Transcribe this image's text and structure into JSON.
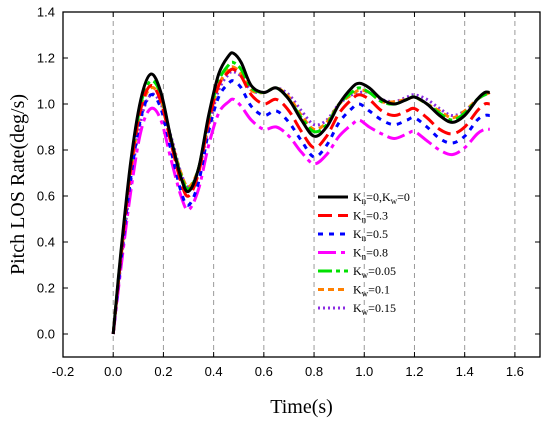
{
  "chart_data": {
    "type": "line",
    "title": "",
    "xlabel": "Time(s)",
    "ylabel": "Pitch LOS Rate(deg/s)",
    "xlim": [
      -0.2,
      1.7
    ],
    "ylim": [
      -0.1,
      1.4
    ],
    "x_ticks": [
      "-0.2",
      "0.0",
      "0.2",
      "0.4",
      "0.6",
      "0.8",
      "1.0",
      "1.2",
      "1.4",
      "1.6"
    ],
    "y_ticks": [
      "0.0",
      "0.2",
      "0.4",
      "0.6",
      "0.8",
      "1.0",
      "1.2",
      "1.4"
    ],
    "grid": "vertical-dashed",
    "legend_position": "center-right",
    "series": [
      {
        "name": "K_n=0,K_w=0",
        "legend_main": "K",
        "legend_sub": "n",
        "legend_tail": "=0,K",
        "legend_sub2": "w",
        "legend_tail2": "=0",
        "color": "#000000",
        "dash": "solid",
        "width": 3,
        "points": [
          [
            0,
            0
          ],
          [
            0.03,
            0.35
          ],
          [
            0.07,
            0.75
          ],
          [
            0.11,
            1.02
          ],
          [
            0.15,
            1.13
          ],
          [
            0.19,
            1.05
          ],
          [
            0.23,
            0.85
          ],
          [
            0.27,
            0.68
          ],
          [
            0.3,
            0.62
          ],
          [
            0.34,
            0.72
          ],
          [
            0.38,
            0.95
          ],
          [
            0.42,
            1.13
          ],
          [
            0.46,
            1.21
          ],
          [
            0.48,
            1.22
          ],
          [
            0.51,
            1.18
          ],
          [
            0.55,
            1.08
          ],
          [
            0.6,
            1.05
          ],
          [
            0.65,
            1.07
          ],
          [
            0.7,
            1.02
          ],
          [
            0.75,
            0.93
          ],
          [
            0.8,
            0.86
          ],
          [
            0.85,
            0.9
          ],
          [
            0.9,
            1.0
          ],
          [
            0.95,
            1.07
          ],
          [
            0.98,
            1.09
          ],
          [
            1.02,
            1.07
          ],
          [
            1.07,
            1.02
          ],
          [
            1.12,
            1.0
          ],
          [
            1.17,
            1.02
          ],
          [
            1.2,
            1.03
          ],
          [
            1.25,
            1.0
          ],
          [
            1.3,
            0.95
          ],
          [
            1.35,
            0.92
          ],
          [
            1.4,
            0.95
          ],
          [
            1.45,
            1.02
          ],
          [
            1.48,
            1.05
          ],
          [
            1.5,
            1.05
          ]
        ]
      },
      {
        "name": "K_n=0.3",
        "legend_main": "K",
        "legend_sub": "n",
        "legend_tail": "=0.3",
        "color": "#ff0000",
        "dash": "14,6",
        "width": 3,
        "points": [
          [
            0,
            0
          ],
          [
            0.03,
            0.33
          ],
          [
            0.07,
            0.72
          ],
          [
            0.11,
            0.98
          ],
          [
            0.15,
            1.08
          ],
          [
            0.19,
            1.01
          ],
          [
            0.23,
            0.83
          ],
          [
            0.27,
            0.66
          ],
          [
            0.3,
            0.6
          ],
          [
            0.34,
            0.7
          ],
          [
            0.38,
            0.92
          ],
          [
            0.42,
            1.08
          ],
          [
            0.46,
            1.14
          ],
          [
            0.48,
            1.15
          ],
          [
            0.51,
            1.12
          ],
          [
            0.55,
            1.04
          ],
          [
            0.6,
            1.0
          ],
          [
            0.65,
            1.02
          ],
          [
            0.7,
            0.97
          ],
          [
            0.75,
            0.88
          ],
          [
            0.8,
            0.81
          ],
          [
            0.85,
            0.86
          ],
          [
            0.9,
            0.96
          ],
          [
            0.95,
            1.02
          ],
          [
            0.98,
            1.04
          ],
          [
            1.02,
            1.02
          ],
          [
            1.07,
            0.97
          ],
          [
            1.12,
            0.95
          ],
          [
            1.17,
            0.97
          ],
          [
            1.2,
            0.98
          ],
          [
            1.25,
            0.94
          ],
          [
            1.3,
            0.89
          ],
          [
            1.35,
            0.87
          ],
          [
            1.4,
            0.9
          ],
          [
            1.45,
            0.97
          ],
          [
            1.48,
            1.0
          ],
          [
            1.5,
            1.0
          ]
        ]
      },
      {
        "name": "K_n=0.5",
        "legend_main": "K",
        "legend_sub": "n",
        "legend_tail": "=0.5",
        "color": "#0000ff",
        "dash": "5,6",
        "width": 3,
        "points": [
          [
            0,
            0
          ],
          [
            0.03,
            0.31
          ],
          [
            0.07,
            0.68
          ],
          [
            0.11,
            0.94
          ],
          [
            0.15,
            1.04
          ],
          [
            0.19,
            0.98
          ],
          [
            0.23,
            0.8
          ],
          [
            0.27,
            0.62
          ],
          [
            0.3,
            0.56
          ],
          [
            0.34,
            0.66
          ],
          [
            0.38,
            0.88
          ],
          [
            0.42,
            1.03
          ],
          [
            0.46,
            1.09
          ],
          [
            0.48,
            1.1
          ],
          [
            0.51,
            1.07
          ],
          [
            0.55,
            0.99
          ],
          [
            0.6,
            0.95
          ],
          [
            0.65,
            0.97
          ],
          [
            0.7,
            0.92
          ],
          [
            0.75,
            0.84
          ],
          [
            0.8,
            0.77
          ],
          [
            0.85,
            0.82
          ],
          [
            0.9,
            0.92
          ],
          [
            0.95,
            0.98
          ],
          [
            0.98,
            1.0
          ],
          [
            1.02,
            0.97
          ],
          [
            1.07,
            0.93
          ],
          [
            1.12,
            0.91
          ],
          [
            1.17,
            0.93
          ],
          [
            1.2,
            0.94
          ],
          [
            1.25,
            0.9
          ],
          [
            1.3,
            0.85
          ],
          [
            1.35,
            0.83
          ],
          [
            1.4,
            0.86
          ],
          [
            1.45,
            0.93
          ],
          [
            1.48,
            0.95
          ],
          [
            1.5,
            0.95
          ]
        ]
      },
      {
        "name": "K_n=0.8",
        "legend_main": "K",
        "legend_sub": "n",
        "legend_tail": "=0.8",
        "color": "#ff00ff",
        "dash": "18,5,4,5",
        "width": 3,
        "points": [
          [
            0,
            0
          ],
          [
            0.03,
            0.28
          ],
          [
            0.07,
            0.62
          ],
          [
            0.11,
            0.88
          ],
          [
            0.15,
            0.98
          ],
          [
            0.19,
            0.93
          ],
          [
            0.23,
            0.76
          ],
          [
            0.27,
            0.6
          ],
          [
            0.3,
            0.54
          ],
          [
            0.34,
            0.63
          ],
          [
            0.38,
            0.82
          ],
          [
            0.42,
            0.96
          ],
          [
            0.46,
            1.01
          ],
          [
            0.48,
            1.02
          ],
          [
            0.51,
            0.99
          ],
          [
            0.55,
            0.93
          ],
          [
            0.6,
            0.89
          ],
          [
            0.65,
            0.9
          ],
          [
            0.7,
            0.86
          ],
          [
            0.75,
            0.79
          ],
          [
            0.8,
            0.74
          ],
          [
            0.85,
            0.78
          ],
          [
            0.9,
            0.86
          ],
          [
            0.95,
            0.91
          ],
          [
            0.98,
            0.93
          ],
          [
            1.02,
            0.9
          ],
          [
            1.07,
            0.87
          ],
          [
            1.12,
            0.85
          ],
          [
            1.17,
            0.87
          ],
          [
            1.2,
            0.88
          ],
          [
            1.25,
            0.84
          ],
          [
            1.3,
            0.8
          ],
          [
            1.35,
            0.78
          ],
          [
            1.4,
            0.81
          ],
          [
            1.45,
            0.87
          ],
          [
            1.48,
            0.89
          ],
          [
            1.5,
            0.89
          ]
        ]
      },
      {
        "name": "K_w=0.05",
        "legend_main": "K",
        "legend_sub": "w",
        "legend_tail": "=0.05",
        "color": "#00e000",
        "dash": "14,4,4,4",
        "width": 3,
        "points": [
          [
            0,
            0
          ],
          [
            0.03,
            0.34
          ],
          [
            0.07,
            0.73
          ],
          [
            0.11,
            1.0
          ],
          [
            0.15,
            1.1
          ],
          [
            0.19,
            1.04
          ],
          [
            0.23,
            0.85
          ],
          [
            0.27,
            0.69
          ],
          [
            0.3,
            0.63
          ],
          [
            0.34,
            0.72
          ],
          [
            0.38,
            0.94
          ],
          [
            0.42,
            1.1
          ],
          [
            0.46,
            1.17
          ],
          [
            0.48,
            1.18
          ],
          [
            0.51,
            1.15
          ],
          [
            0.55,
            1.07
          ],
          [
            0.6,
            1.05
          ],
          [
            0.65,
            1.07
          ],
          [
            0.7,
            1.02
          ],
          [
            0.75,
            0.94
          ],
          [
            0.8,
            0.88
          ],
          [
            0.85,
            0.91
          ],
          [
            0.9,
            1.0
          ],
          [
            0.95,
            1.05
          ],
          [
            0.98,
            1.07
          ],
          [
            1.02,
            1.05
          ],
          [
            1.07,
            1.01
          ],
          [
            1.12,
            1.0
          ],
          [
            1.17,
            1.02
          ],
          [
            1.2,
            1.03
          ],
          [
            1.25,
            1.0
          ],
          [
            1.3,
            0.96
          ],
          [
            1.35,
            0.93
          ],
          [
            1.4,
            0.96
          ],
          [
            1.45,
            1.02
          ],
          [
            1.48,
            1.04
          ],
          [
            1.5,
            1.05
          ]
        ]
      },
      {
        "name": "K_w=0.1",
        "legend_main": "K",
        "legend_sub": "w",
        "legend_tail": "=0.1",
        "color": "#ff8000",
        "dash": "6,4",
        "width": 3,
        "points": [
          [
            0,
            0
          ],
          [
            0.03,
            0.32
          ],
          [
            0.07,
            0.7
          ],
          [
            0.11,
            0.97
          ],
          [
            0.15,
            1.07
          ],
          [
            0.19,
            1.02
          ],
          [
            0.23,
            0.85
          ],
          [
            0.27,
            0.7
          ],
          [
            0.3,
            0.64
          ],
          [
            0.34,
            0.72
          ],
          [
            0.38,
            0.92
          ],
          [
            0.42,
            1.08
          ],
          [
            0.46,
            1.15
          ],
          [
            0.48,
            1.16
          ],
          [
            0.51,
            1.13
          ],
          [
            0.55,
            1.06
          ],
          [
            0.6,
            1.05
          ],
          [
            0.65,
            1.07
          ],
          [
            0.7,
            1.03
          ],
          [
            0.75,
            0.95
          ],
          [
            0.8,
            0.89
          ],
          [
            0.85,
            0.92
          ],
          [
            0.9,
            1.0
          ],
          [
            0.95,
            1.04
          ],
          [
            0.98,
            1.06
          ],
          [
            1.02,
            1.05
          ],
          [
            1.07,
            1.01
          ],
          [
            1.12,
            1.01
          ],
          [
            1.17,
            1.02
          ],
          [
            1.2,
            1.03
          ],
          [
            1.25,
            1.0
          ],
          [
            1.3,
            0.97
          ],
          [
            1.35,
            0.94
          ],
          [
            1.4,
            0.97
          ],
          [
            1.45,
            1.02
          ],
          [
            1.48,
            1.04
          ],
          [
            1.5,
            1.05
          ]
        ]
      },
      {
        "name": "K_w=0.15",
        "legend_main": "K",
        "legend_sub": "w",
        "legend_tail": "=0.15",
        "color": "#8a2be2",
        "dash": "2,3",
        "width": 3,
        "points": [
          [
            0,
            0
          ],
          [
            0.03,
            0.3
          ],
          [
            0.07,
            0.66
          ],
          [
            0.11,
            0.93
          ],
          [
            0.15,
            1.04
          ],
          [
            0.19,
            1.0
          ],
          [
            0.23,
            0.86
          ],
          [
            0.27,
            0.7
          ],
          [
            0.3,
            0.64
          ],
          [
            0.34,
            0.71
          ],
          [
            0.38,
            0.9
          ],
          [
            0.42,
            1.06
          ],
          [
            0.46,
            1.13
          ],
          [
            0.48,
            1.14
          ],
          [
            0.51,
            1.12
          ],
          [
            0.55,
            1.06
          ],
          [
            0.6,
            1.05
          ],
          [
            0.65,
            1.07
          ],
          [
            0.7,
            1.04
          ],
          [
            0.75,
            0.97
          ],
          [
            0.8,
            0.91
          ],
          [
            0.85,
            0.93
          ],
          [
            0.9,
            1.0
          ],
          [
            0.95,
            1.04
          ],
          [
            0.98,
            1.05
          ],
          [
            1.02,
            1.05
          ],
          [
            1.07,
            1.02
          ],
          [
            1.12,
            1.01
          ],
          [
            1.17,
            1.03
          ],
          [
            1.2,
            1.04
          ],
          [
            1.25,
            1.02
          ],
          [
            1.3,
            0.98
          ],
          [
            1.35,
            0.95
          ],
          [
            1.4,
            0.97
          ],
          [
            1.45,
            1.02
          ],
          [
            1.48,
            1.04
          ],
          [
            1.5,
            1.05
          ]
        ]
      }
    ]
  }
}
